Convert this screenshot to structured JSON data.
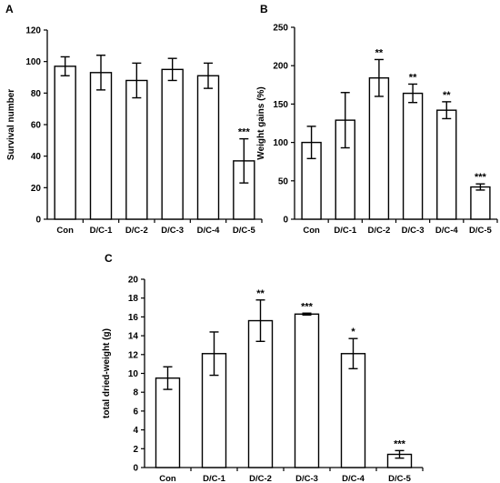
{
  "chart_data": [
    {
      "panel_label": "A",
      "type": "bar",
      "categories": [
        "Con",
        "D/C-1",
        "D/C-2",
        "D/C-3",
        "D/C-4",
        "D/C-5"
      ],
      "values": [
        97,
        93,
        88,
        95,
        91,
        37
      ],
      "errors": [
        6,
        11,
        11,
        7,
        8,
        14
      ],
      "significance": [
        "",
        "",
        "",
        "",
        "",
        "***"
      ],
      "ylabel": "Survival number",
      "ylim": [
        0,
        120
      ],
      "yticks": [
        0,
        20,
        40,
        60,
        80,
        100,
        120
      ],
      "grid": false
    },
    {
      "panel_label": "B",
      "type": "bar",
      "categories": [
        "Con",
        "D/C-1",
        "D/C-2",
        "D/C-3",
        "D/C-4",
        "D/C-5"
      ],
      "values": [
        100,
        129,
        184,
        164,
        142,
        42
      ],
      "errors": [
        21,
        36,
        24,
        12,
        11,
        4
      ],
      "significance": [
        "",
        "",
        "**",
        "**",
        "**",
        "***"
      ],
      "ylabel": "Weight gains  (%)",
      "ylim": [
        0,
        250
      ],
      "yticks": [
        0,
        50,
        100,
        150,
        200,
        250
      ],
      "grid": false
    },
    {
      "panel_label": "C",
      "type": "bar",
      "categories": [
        "Con",
        "D/C-1",
        "D/C-2",
        "D/C-3",
        "D/C-4",
        "D/C-5"
      ],
      "values": [
        9.5,
        12.1,
        15.6,
        16.3,
        12.1,
        1.4
      ],
      "errors": [
        1.2,
        2.3,
        2.2,
        0.1,
        1.6,
        0.4
      ],
      "significance": [
        "",
        "",
        "**",
        "***",
        "*",
        "***"
      ],
      "ylabel": "total dried-weight (g)",
      "ylim": [
        0,
        20
      ],
      "yticks": [
        0,
        2,
        4,
        6,
        8,
        10,
        12,
        14,
        16,
        18,
        20
      ],
      "grid": false
    }
  ]
}
